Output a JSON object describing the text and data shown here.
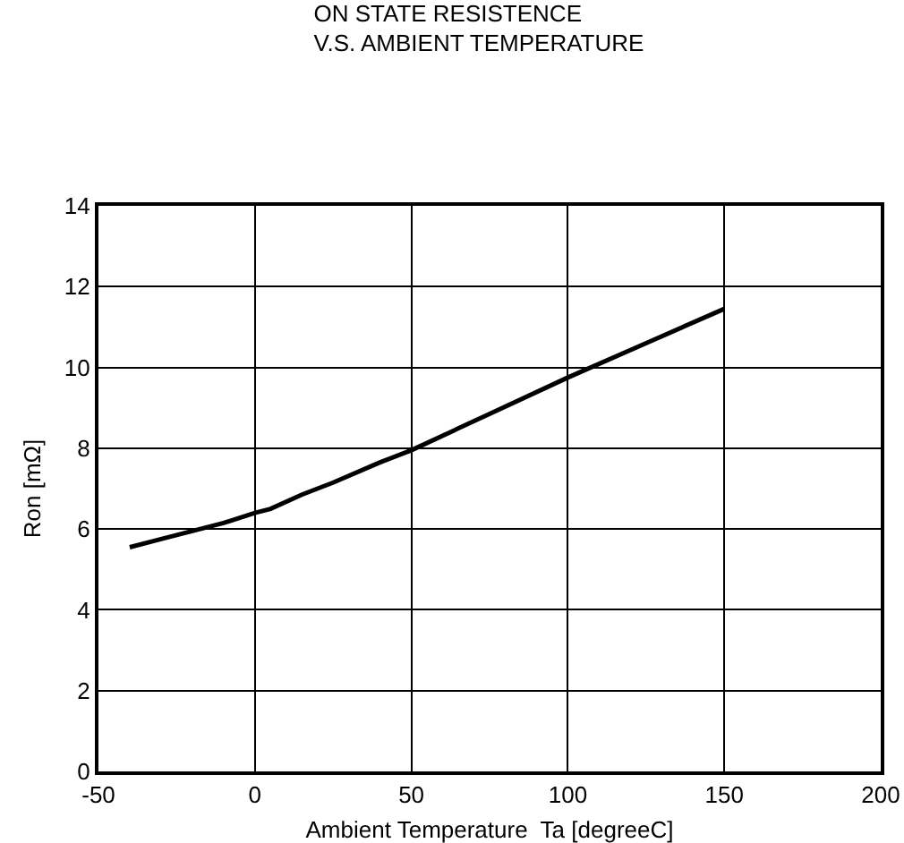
{
  "chart_data": {
    "type": "line",
    "title": "ON STATE RESISTENCE\nV.S. AMBIENT TEMPERATURE",
    "xlabel": "Ambient Temperature  Ta [degreeC]",
    "ylabel": "Ron [mΩ]",
    "x": [
      -40,
      -30,
      -20,
      -10,
      0,
      5,
      15,
      25,
      40,
      50,
      75,
      100,
      125,
      150
    ],
    "series": [
      {
        "color": "#000000",
        "values": [
          5.55,
          5.75,
          5.95,
          6.15,
          6.4,
          6.5,
          6.85,
          7.15,
          7.65,
          7.95,
          8.85,
          9.75,
          10.6,
          11.45
        ]
      }
    ],
    "xlim": [
      -50,
      200
    ],
    "xticks": [
      -50,
      0,
      50,
      100,
      150,
      200
    ],
    "ylim": [
      0,
      14
    ],
    "yticks": [
      0,
      2,
      4,
      6,
      8,
      10,
      12,
      14
    ],
    "grid": true,
    "marker": "none",
    "line_style": "solid"
  }
}
